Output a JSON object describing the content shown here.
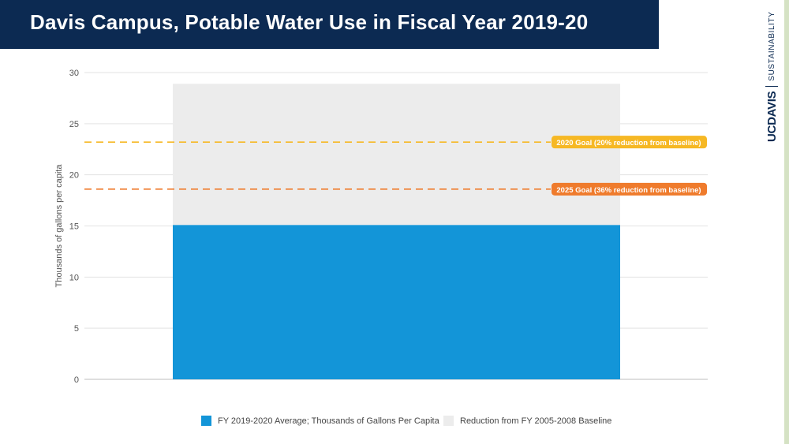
{
  "header": {
    "title": "Davis Campus, Potable Water Use in Fiscal Year 2019-20"
  },
  "logo": {
    "main": "UCDAVIS",
    "sub": "SUSTAINABILITY"
  },
  "chart_data": {
    "type": "bar",
    "stacked": true,
    "categories": [
      ""
    ],
    "series": [
      {
        "name": "FY 2019-2020 Average; Thousands of Gallons Per Capita",
        "values": [
          15.1
        ],
        "color": "#1395d8"
      },
      {
        "name": "Reduction from FY 2005-2008 Baseline",
        "values": [
          13.8
        ],
        "color": "#ececec"
      }
    ],
    "ylabel": "Thousands of gallons per capita",
    "ylim": [
      0,
      30
    ],
    "yticks": [
      0,
      5,
      10,
      15,
      20,
      25,
      30
    ],
    "grid": true,
    "legend_position": "bottom",
    "reference_lines": [
      {
        "label": "2020 Goal (20% reduction from baseline)",
        "value": 23.2,
        "color": "#f6b824"
      },
      {
        "label": "2025 Goal (36% reduction from baseline)",
        "value": 18.6,
        "color": "#ef7b2c"
      }
    ]
  }
}
